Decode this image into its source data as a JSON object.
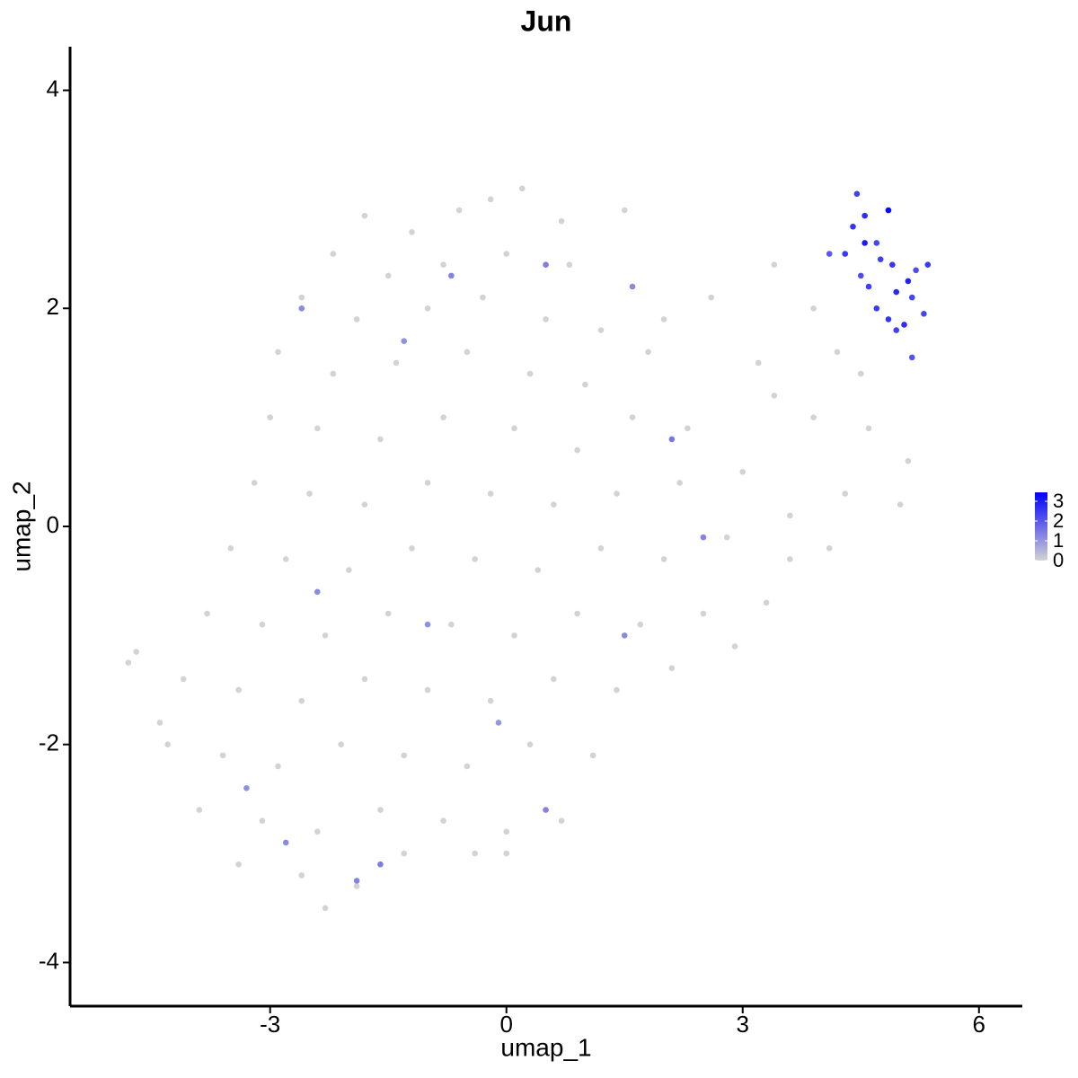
{
  "chart_data": {
    "type": "scatter",
    "title": "Jun",
    "x_label": "umap_1",
    "y_label": "umap_2",
    "xlim": [
      -5.54,
      6.55
    ],
    "ylim": [
      -4.4,
      4.4
    ],
    "xticks": [
      -3,
      0,
      3,
      6
    ],
    "yticks": [
      -4,
      -2,
      0,
      2,
      4
    ],
    "grid": false,
    "x": [
      -1.8,
      -1.2,
      -0.6,
      -0.2,
      0.2,
      0.7,
      1.5,
      -2.2,
      -1.5,
      -0.8,
      0,
      0.8,
      -2.6,
      -1.9,
      -1.0,
      -0.3,
      0.5,
      1.2,
      -2.9,
      -2.2,
      -1.4,
      -0.5,
      0.3,
      1.0,
      1.8,
      -3.0,
      -2.4,
      -1.6,
      -0.8,
      0.1,
      0.9,
      1.6,
      2.3,
      -3.2,
      -2.5,
      -1.8,
      -1.0,
      -0.2,
      0.6,
      1.4,
      2.2,
      3.0,
      -3.5,
      -2.8,
      -2.0,
      -1.2,
      -0.4,
      0.4,
      1.2,
      2.0,
      2.8,
      3.6,
      -3.8,
      -3.1,
      -2.3,
      -1.5,
      -0.7,
      0.1,
      0.9,
      1.7,
      2.5,
      3.3,
      -4.1,
      -3.4,
      -2.6,
      -1.8,
      -1.0,
      -0.2,
      0.6,
      1.4,
      2.1,
      -4.3,
      -3.6,
      -2.9,
      -2.1,
      -1.3,
      -0.5,
      0.3,
      1.1,
      -3.9,
      -3.1,
      -2.4,
      -1.6,
      -0.8,
      0.0,
      0.7,
      -3.4,
      -2.6,
      -1.9,
      -1.3,
      -0.4,
      0,
      -2.3,
      -4.8,
      -4.7,
      -4.4,
      3.4,
      2.6,
      3.9,
      4.2,
      3.2,
      3.9,
      4.6,
      5.1,
      4.3,
      3.6,
      4.1,
      2.9,
      3.4,
      2.0,
      4.5,
      5.0,
      -2.6,
      -1.3,
      -0.7,
      0.5,
      -2.4,
      -1.0,
      2.1,
      2.5,
      -2.8,
      -1.9,
      -1.6,
      0.5,
      1.5,
      -3.3,
      1.6,
      -0.1,
      4.45,
      4.85,
      4.4,
      4.55,
      4.7,
      4.3,
      4.9,
      5.2,
      5.35,
      4.6,
      4.95,
      5.15,
      4.7,
      4.85,
      5.05,
      5.3,
      4.95,
      5.15,
      4.5,
      4.1,
      5.1,
      4.75,
      4.55
    ],
    "y": [
      2.85,
      2.7,
      2.9,
      3.0,
      3.1,
      2.8,
      2.9,
      2.5,
      2.3,
      2.4,
      2.5,
      2.4,
      2.1,
      1.9,
      2.0,
      2.1,
      1.9,
      1.8,
      1.6,
      1.4,
      1.5,
      1.6,
      1.4,
      1.3,
      1.6,
      1.0,
      0.9,
      0.8,
      1.0,
      0.9,
      0.7,
      1.0,
      0.9,
      0.4,
      0.3,
      0.2,
      0.4,
      0.3,
      0.2,
      0.3,
      0.4,
      0.5,
      -0.2,
      -0.3,
      -0.4,
      -0.2,
      -0.3,
      -0.4,
      -0.2,
      -0.3,
      -0.1,
      0.1,
      -0.8,
      -0.9,
      -1.0,
      -0.8,
      -0.9,
      -1.0,
      -0.8,
      -0.9,
      -0.8,
      -0.7,
      -1.4,
      -1.5,
      -1.6,
      -1.4,
      -1.5,
      -1.6,
      -1.4,
      -1.5,
      -1.3,
      -2.0,
      -2.1,
      -2.2,
      -2.0,
      -2.1,
      -2.2,
      -2.0,
      -2.1,
      -2.6,
      -2.7,
      -2.8,
      -2.6,
      -2.7,
      -2.8,
      -2.7,
      -3.1,
      -3.2,
      -3.3,
      -3.0,
      -3.0,
      -3.0,
      -3.5,
      -1.25,
      -1.15,
      -1.8,
      2.4,
      2.1,
      2.0,
      1.6,
      1.5,
      1.0,
      0.9,
      0.6,
      0.3,
      -0.3,
      -0.2,
      -1.1,
      1.2,
      1.9,
      1.4,
      0.2,
      2.0,
      1.7,
      2.3,
      2.4,
      -0.6,
      -0.9,
      0.8,
      -0.1,
      -2.9,
      -3.25,
      -3.1,
      -2.6,
      -1.0,
      -2.4,
      2.2,
      -1.8,
      3.05,
      2.9,
      2.75,
      2.85,
      2.6,
      2.5,
      2.4,
      2.35,
      2.4,
      2.2,
      2.15,
      2.1,
      2.0,
      1.9,
      1.85,
      1.95,
      1.8,
      1.55,
      2.3,
      2.5,
      2.25,
      2.45,
      2.6
    ],
    "expression": [
      0,
      0,
      0,
      0,
      0,
      0,
      0,
      0,
      0,
      0,
      0,
      0,
      0,
      0,
      0,
      0,
      0,
      0,
      0,
      0,
      0,
      0,
      0,
      0,
      0,
      0,
      0,
      0,
      0,
      0,
      0,
      0,
      0,
      0,
      0,
      0,
      0,
      0,
      0,
      0,
      0,
      0,
      0,
      0,
      0,
      0,
      0,
      0,
      0,
      0,
      0,
      0,
      0,
      0,
      0,
      0,
      0,
      0,
      0,
      0,
      0,
      0,
      0,
      0,
      0,
      0,
      0,
      0,
      0,
      0,
      0,
      0,
      0,
      0,
      0,
      0,
      0,
      0,
      0,
      0,
      0,
      0,
      0,
      0,
      0,
      0,
      0,
      0,
      0,
      0,
      0,
      0,
      0,
      0,
      0,
      0,
      0,
      0,
      0,
      0,
      0,
      0,
      0,
      0,
      0,
      0,
      0,
      0,
      0,
      0,
      0,
      0,
      1.2,
      1.1,
      1.3,
      1.4,
      1.2,
      1.1,
      1.5,
      1.3,
      1.2,
      1.3,
      1.4,
      1.3,
      1.2,
      1.1,
      1.2,
      1.0,
      2.4,
      3.3,
      2.6,
      2.7,
      2.3,
      2.5,
      2.6,
      2.2,
      2.5,
      2.4,
      2.8,
      2.3,
      2.5,
      2.6,
      2.7,
      2.3,
      2.4,
      2.1,
      2.2,
      2.0,
      2.9,
      2.4,
      3.0
    ],
    "colorbar": {
      "lim": [
        0,
        3.45
      ],
      "ticks": [
        0,
        1,
        2,
        3
      ],
      "low": "#d3d3d3",
      "high": "#0000ff"
    }
  }
}
